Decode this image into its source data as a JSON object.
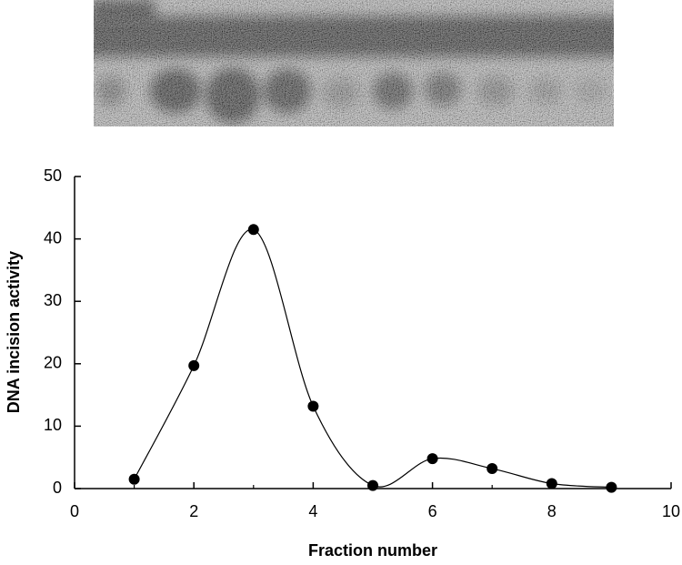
{
  "chart_data": {
    "type": "line",
    "x": [
      1,
      2,
      3,
      4,
      5,
      6,
      7,
      8,
      9
    ],
    "values": [
      1.5,
      19.7,
      41.5,
      13.2,
      0.5,
      4.8,
      3.2,
      0.8,
      0.2
    ],
    "color": "#000000",
    "xlabel": "Fraction number",
    "ylabel": "DNA incision activity",
    "xlim": [
      0,
      10
    ],
    "xticks": [
      0,
      2,
      4,
      6,
      8,
      10
    ],
    "xminorticks": [
      1,
      3,
      5,
      7,
      9
    ],
    "ylim": [
      0,
      50
    ],
    "yticks": [
      0,
      10,
      20,
      30,
      40,
      50
    ],
    "smooth": true,
    "grid": false
  }
}
